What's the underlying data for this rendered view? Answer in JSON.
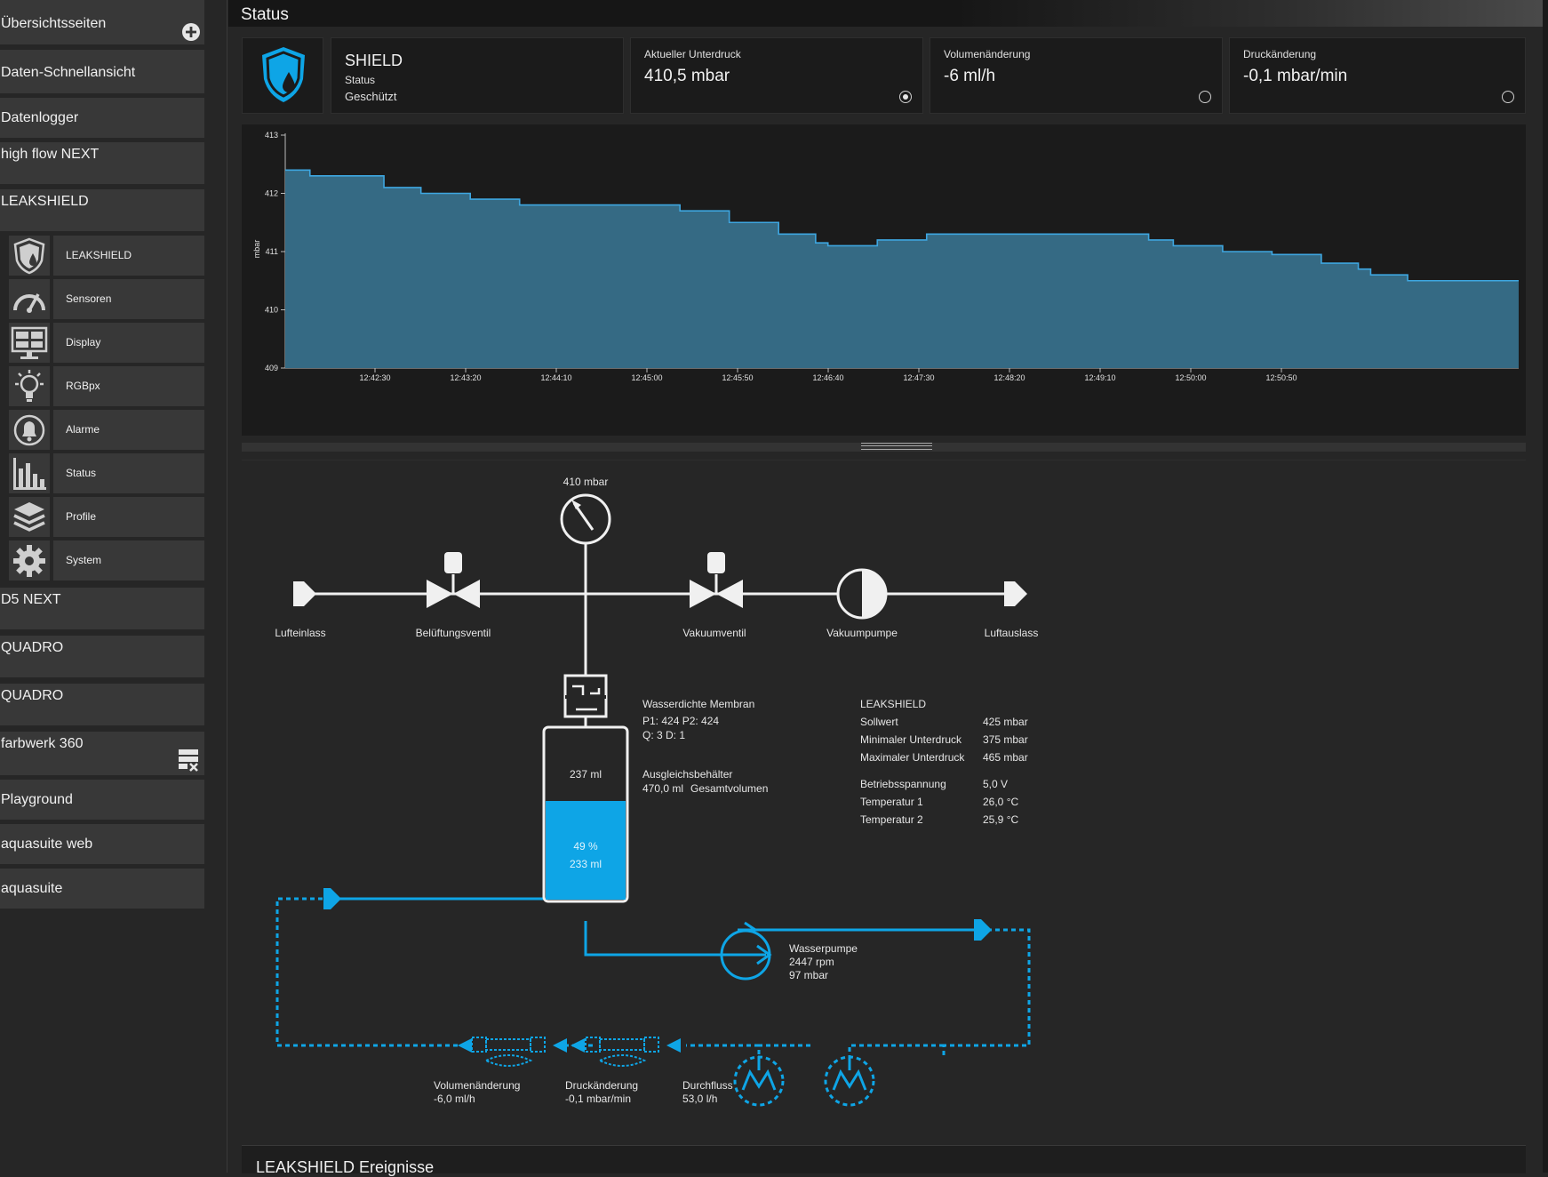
{
  "sidebar": {
    "overview_pages": "Übersichtsseiten",
    "items": [
      {
        "label": "Daten-Schnellansicht"
      },
      {
        "label": "Datenlogger"
      },
      {
        "label": "high flow NEXT"
      },
      {
        "label": "LEAKSHIELD"
      }
    ],
    "sub_items": [
      {
        "label": "LEAKSHIELD",
        "icon": "shield-drop-icon"
      },
      {
        "label": "Sensoren",
        "icon": "gauge-icon"
      },
      {
        "label": "Display",
        "icon": "display-icon"
      },
      {
        "label": "RGBpx",
        "icon": "bulb-icon"
      },
      {
        "label": "Alarme",
        "icon": "alarm-bell-icon"
      },
      {
        "label": "Status",
        "icon": "bar-chart-icon"
      },
      {
        "label": "Profile",
        "icon": "layers-icon"
      },
      {
        "label": "System",
        "icon": "gear-icon"
      }
    ],
    "items_after": [
      {
        "label": "D5 NEXT"
      },
      {
        "label": "QUADRO"
      },
      {
        "label": "QUADRO"
      },
      {
        "label": "farbwerk 360"
      },
      {
        "label": "Playground"
      },
      {
        "label": "aquasuite web"
      },
      {
        "label": "aquasuite"
      }
    ]
  },
  "header": {
    "title": "Status"
  },
  "cards": {
    "shield": {
      "name": "SHIELD",
      "status_label": "Status",
      "status_value": "Geschützt"
    },
    "pressure": {
      "label": "Aktueller Unterdruck",
      "value": "410,5 mbar",
      "selected": true
    },
    "volume": {
      "label": "Volumenänderung",
      "value": "-6 ml/h",
      "selected": false
    },
    "rate": {
      "label": "Druckänderung",
      "value": "-0,1 mbar/min",
      "selected": false
    }
  },
  "chart_data": {
    "type": "area",
    "ylabel": "mbar",
    "ylim": [
      409,
      413
    ],
    "yticks": [
      409,
      410,
      411,
      412,
      413
    ],
    "xticks": [
      "12:42:30",
      "12:43:20",
      "12:44:10",
      "12:45:00",
      "12:45:50",
      "12:46:40",
      "12:47:30",
      "12:48:20",
      "12:49:10",
      "12:50:00",
      "12:50:50"
    ],
    "series": [
      {
        "color": "#3ea6e0",
        "fill": "#356a84",
        "x": [
          0,
          0.02,
          0.03,
          0.08,
          0.11,
          0.15,
          0.19,
          0.25,
          0.32,
          0.36,
          0.4,
          0.43,
          0.44,
          0.48,
          0.52,
          0.55,
          0.58,
          0.62,
          0.66,
          0.7,
          0.72,
          0.76,
          0.8,
          0.84,
          0.87,
          0.88,
          0.91,
          0.96,
          0.98,
          1.0
        ],
        "values": [
          412.4,
          412.3,
          412.3,
          412.1,
          412.0,
          411.9,
          411.8,
          411.8,
          411.7,
          411.5,
          411.3,
          411.15,
          411.1,
          411.2,
          411.3,
          411.3,
          411.3,
          411.3,
          411.3,
          411.2,
          411.1,
          411.0,
          410.95,
          410.8,
          410.7,
          410.6,
          410.5,
          410.5,
          410.5,
          410.5
        ]
      }
    ]
  },
  "diagram": {
    "gauge_label": "410 mbar",
    "air_in": "Lufteinlass",
    "vent_valve": "Belüftungsventil",
    "vacuum_valve": "Vakuumventil",
    "vacuum_pump": "Vakuumpumpe",
    "air_out": "Luftauslass",
    "membrane_title": "Wasserdichte Membran",
    "membrane_p": "P1: 424 P2: 424",
    "membrane_q": "Q: 3 D: 1",
    "reservoir_top": "237 ml",
    "reservoir_pct": "49 %",
    "reservoir_ml": "233 ml",
    "reservoir_level": 0.49,
    "tank_title": "Ausgleichsbehälter",
    "tank_vol": "470,0 ml",
    "tank_vol_label": "Gesamtvolumen",
    "water_pump_title": "Wasserpumpe",
    "water_pump_rpm": "2447 rpm",
    "water_pump_mbar": "97 mbar",
    "vol_change_label": "Volumenänderung",
    "vol_change_value": "-6,0 ml/h",
    "rate_change_label": "Druckänderung",
    "rate_change_value": "-0,1 mbar/min",
    "flow_label": "Durchfluss",
    "flow_value": "53,0 l/h",
    "info": {
      "title": "LEAKSHIELD",
      "rows": [
        {
          "k": "Sollwert",
          "v": "425 mbar"
        },
        {
          "k": "Minimaler Unterdruck",
          "v": "375 mbar"
        },
        {
          "k": "Maximaler Unterdruck",
          "v": "465 mbar"
        },
        {
          "k": "Betriebsspannung",
          "v": "5,0 V"
        },
        {
          "k": "Temperatur 1",
          "v": "26,0 °C"
        },
        {
          "k": "Temperatur 2",
          "v": "25,9 °C"
        }
      ]
    }
  },
  "events": {
    "title": "LEAKSHIELD Ereignisse"
  },
  "colors": {
    "accent": "#0ea5e6",
    "panel": "#1b1b1b",
    "item": "#383838"
  }
}
